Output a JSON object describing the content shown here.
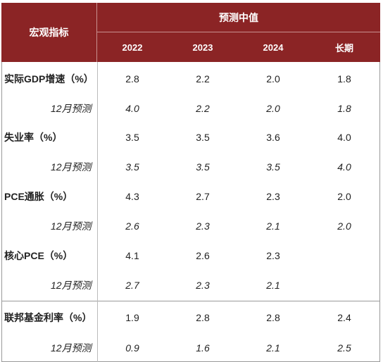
{
  "header": {
    "row_header": "宏观指标",
    "group_header": "预测中值",
    "columns": [
      "2022",
      "2023",
      "2024",
      "长期"
    ]
  },
  "rows": [
    {
      "label": "实际GDP增速（%）",
      "values": [
        "2.8",
        "2.2",
        "2.0",
        "1.8"
      ],
      "sub_label": "12月预测",
      "sub_values": [
        "4.0",
        "2.2",
        "2.0",
        "1.8"
      ]
    },
    {
      "label": "失业率（%）",
      "values": [
        "3.5",
        "3.5",
        "3.6",
        "4.0"
      ],
      "sub_label": "12月预测",
      "sub_values": [
        "3.5",
        "3.5",
        "3.5",
        "4.0"
      ]
    },
    {
      "label": "PCE通胀（%）",
      "values": [
        "4.3",
        "2.7",
        "2.3",
        "2.0"
      ],
      "sub_label": "12月预测",
      "sub_values": [
        "2.6",
        "2.3",
        "2.1",
        "2.0"
      ]
    },
    {
      "label": "核心PCE（%）",
      "values": [
        "4.1",
        "2.6",
        "2.3",
        ""
      ],
      "sub_label": "12月预测",
      "sub_values": [
        "2.7",
        "2.3",
        "2.1",
        ""
      ]
    },
    {
      "label": "联邦基金利率（%）",
      "values": [
        "1.9",
        "2.8",
        "2.8",
        "2.4"
      ],
      "sub_label": "12月预测",
      "sub_values": [
        "0.9",
        "1.6",
        "2.1",
        "2.5"
      ]
    }
  ],
  "colors": {
    "header_bg": "#8b2425",
    "header_text": "#ffffff"
  }
}
